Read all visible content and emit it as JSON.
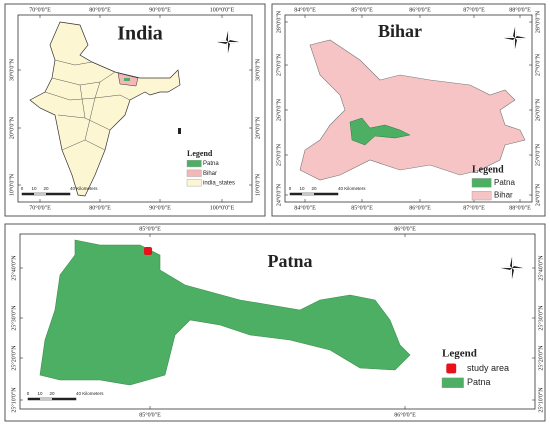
{
  "panels": [
    {
      "title": "India",
      "lon_labels": [
        "70°0'0\"E",
        "80°0'0\"E",
        "90°0'0\"E",
        "100°0'0\"E"
      ],
      "lat_labels": [
        "30°0'0\"N",
        "20°0'0\"N",
        "10°0'0\"N"
      ],
      "legend": {
        "title": "Legend",
        "items": [
          "Patna",
          "Bihar",
          "india_states"
        ]
      },
      "scale_labels": [
        "0",
        "10",
        "20",
        "40 Kilometers"
      ]
    },
    {
      "title": "Bihar",
      "lon_labels": [
        "84°0'0\"E",
        "85°0'0\"E",
        "86°0'0\"E",
        "87°0'0\"E",
        "88°0'0\"E"
      ],
      "lat_labels": [
        "28°0'0\"N",
        "27°0'0\"N",
        "26°0'0\"N",
        "25°0'0\"N",
        "24°0'0\"N"
      ],
      "legend": {
        "title": "Legend",
        "items": [
          "Patna",
          "Bihar"
        ]
      },
      "scale_labels": [
        "0",
        "10",
        "20",
        "40 Kilometers"
      ]
    },
    {
      "title": "Patna",
      "lon_labels": [
        "85°0'0\"E",
        "86°0'0\"E"
      ],
      "lat_labels": [
        "25°40'0\"N",
        "25°30'0\"N",
        "25°20'0\"N",
        "25°10'0\"N"
      ],
      "legend": {
        "title": "Legend",
        "items": [
          "study area",
          "Patna"
        ]
      },
      "scale_labels": [
        "0",
        "10",
        "20",
        "40 Kilometers"
      ]
    }
  ]
}
